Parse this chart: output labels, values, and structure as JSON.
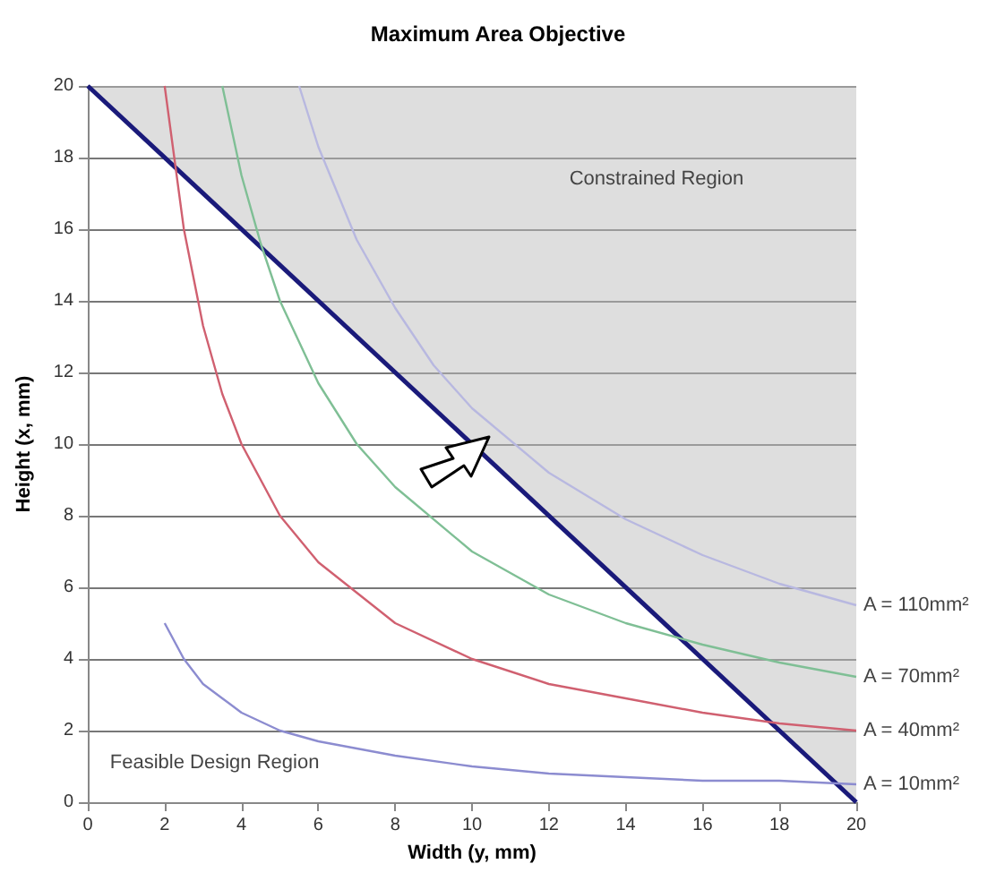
{
  "chart_data": {
    "type": "line",
    "title": "Maximum Area Objective",
    "xlabel": "Width (y, mm)",
    "ylabel": "Height (x, mm)",
    "xlim": [
      0,
      20
    ],
    "xticks": [
      0,
      2,
      4,
      6,
      8,
      10,
      12,
      14,
      16,
      18,
      20
    ],
    "ylim": [
      0,
      20
    ],
    "yticks": [
      0,
      2,
      4,
      6,
      8,
      10,
      12,
      14,
      16,
      18,
      20
    ],
    "grid": "y",
    "legend": false,
    "marker": "none",
    "line_style": "solid",
    "annotations": [
      "Constrained Region",
      "Feasible Design Region"
    ],
    "series": [
      {
        "color": "#1a1a7a",
        "x": [
          0,
          20
        ],
        "values": [
          20,
          0
        ],
        "lower": [
          20,
          0
        ],
        "upper": [
          20,
          20
        ]
      },
      {
        "name": "A = 110mm²",
        "color": "#b8b8e0",
        "x": [
          5.5,
          6,
          7,
          8,
          9,
          10,
          12,
          14,
          16,
          18,
          20
        ],
        "values": [
          20,
          18.3,
          15.7,
          13.8,
          12.2,
          11,
          9.2,
          7.9,
          6.9,
          6.1,
          5.5
        ]
      },
      {
        "name": "A = 70mm²",
        "color": "#7fbf95",
        "x": [
          3.5,
          4,
          4.5,
          5,
          6,
          7,
          8,
          10,
          12,
          14,
          16,
          18,
          20
        ],
        "values": [
          20,
          17.5,
          15.6,
          14,
          11.7,
          10,
          8.8,
          7,
          5.8,
          5,
          4.4,
          3.9,
          3.5
        ]
      },
      {
        "name": "A = 40mm²",
        "color": "#d06070",
        "x": [
          2,
          2.5,
          3,
          3.5,
          4,
          5,
          6,
          8,
          10,
          12,
          14,
          16,
          18,
          20
        ],
        "values": [
          20,
          16,
          13.3,
          11.4,
          10,
          8,
          6.7,
          5,
          4,
          3.3,
          2.9,
          2.5,
          2.2,
          2
        ]
      },
      {
        "name": "A = 10mm²",
        "color": "#8c8cd0",
        "x": [
          2,
          2.5,
          3,
          3.5,
          4,
          5,
          6,
          8,
          10,
          12,
          14,
          16,
          18,
          20
        ],
        "values": [
          5,
          4,
          3.3,
          2.9,
          2.5,
          2,
          1.7,
          1.3,
          1,
          0.8,
          0.7,
          0.6,
          0.6,
          0.5
        ]
      }
    ]
  }
}
